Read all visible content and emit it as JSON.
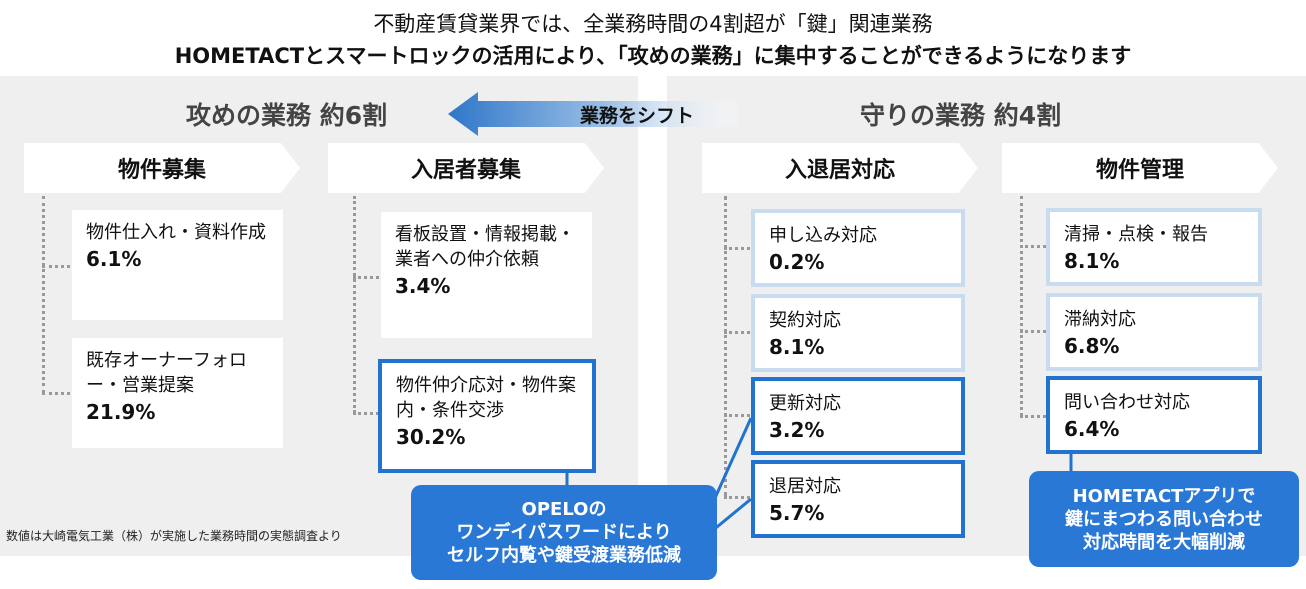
{
  "header": {
    "line1": "不動産賃貸業界では、全業務時間の4割超が「鍵」関連業務",
    "line2": "HOMETACTとスマートロックの活用により、「攻めの業務」に集中することができるようになります"
  },
  "arrow_label": "業務をシフト",
  "offense": {
    "title": "攻めの業務 約6割",
    "columns": [
      {
        "heading": "物件募集",
        "items": [
          {
            "label": "物件仕入れ・資料作成",
            "pct": "6.1%"
          },
          {
            "label": "既存オーナーフォロー・営業提案",
            "pct": "21.9%"
          }
        ]
      },
      {
        "heading": "入居者募集",
        "items": [
          {
            "label": "看板設置・情報掲載・業者への仲介依頼",
            "pct": "3.4%"
          },
          {
            "label": "物件仲介応対・物件案内・条件交渉",
            "pct": "30.2%"
          }
        ]
      }
    ]
  },
  "defense": {
    "title": "守りの業務 約4割",
    "columns": [
      {
        "heading": "入退居対応",
        "items": [
          {
            "label": "申し込み対応",
            "pct": "0.2%"
          },
          {
            "label": "契約対応",
            "pct": "8.1%"
          },
          {
            "label": "更新対応",
            "pct": "3.2%"
          },
          {
            "label": "退居対応",
            "pct": "5.7%"
          }
        ]
      },
      {
        "heading": "物件管理",
        "items": [
          {
            "label": "清掃・点検・報告",
            "pct": "8.1%"
          },
          {
            "label": "滞納対応",
            "pct": "6.8%"
          },
          {
            "label": "問い合わせ対応",
            "pct": "6.4%"
          }
        ]
      }
    ]
  },
  "callouts": {
    "opelo": "OPELOの\nワンデイパスワードにより\nセルフ内覧や鍵受渡業務低減",
    "hometact": "HOMETACTアプリで\n鍵にまつわる問い合わせ\n対応時間を大幅削減"
  },
  "note": "数値は大崎電気工業（株）が実施した業務時間の実態調査より",
  "colors": {
    "panel": "#efefef",
    "accent": "#2173cf",
    "light_border": "#c9dcef",
    "callout": "#2a78d6"
  }
}
